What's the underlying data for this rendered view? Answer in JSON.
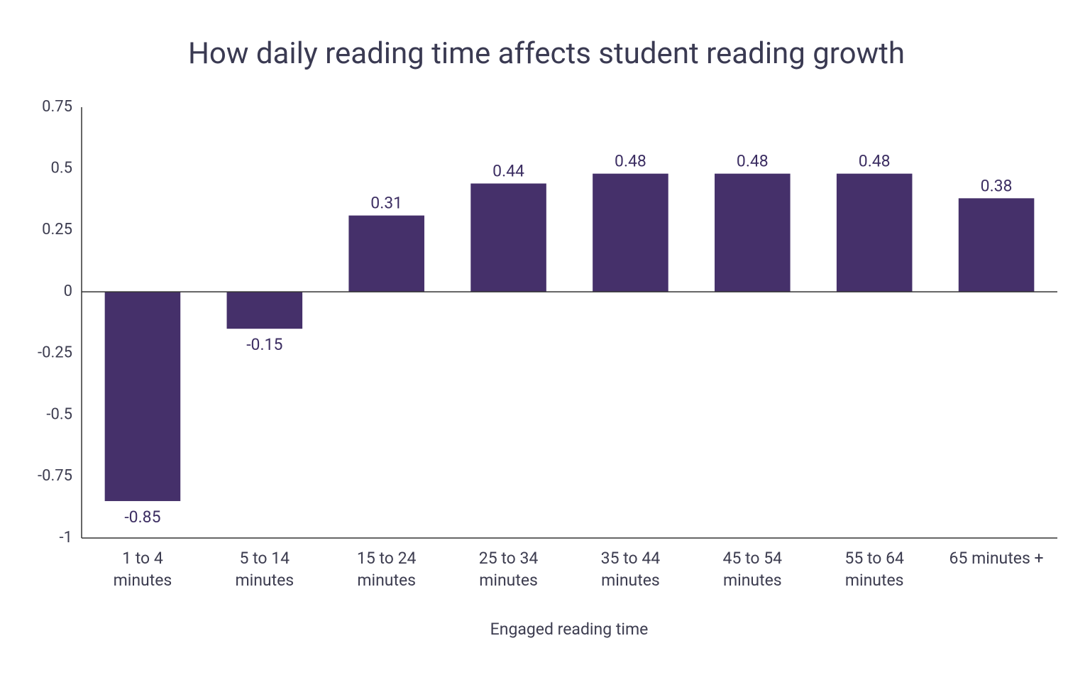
{
  "chart_data": {
    "type": "bar",
    "title": "How daily reading time affects student reading growth",
    "x_label": "Engaged reading time",
    "categories": [
      "1 to 4\nminutes",
      "5 to 14\nminutes",
      "15 to 24\nminutes",
      "25 to 34\nminutes",
      "35 to 44\nminutes",
      "45 to 54\nminutes",
      "55 to 64\nminutes",
      "65 minutes +"
    ],
    "values": [
      -0.85,
      -0.15,
      0.31,
      0.44,
      0.48,
      0.48,
      0.48,
      0.38
    ],
    "color": "#45306a",
    "ylim": [
      -1,
      0.75
    ],
    "yticks": [
      0.75,
      0.5,
      0.25,
      0,
      -0.25,
      -0.5,
      -0.75,
      -1
    ],
    "grid": false
  }
}
